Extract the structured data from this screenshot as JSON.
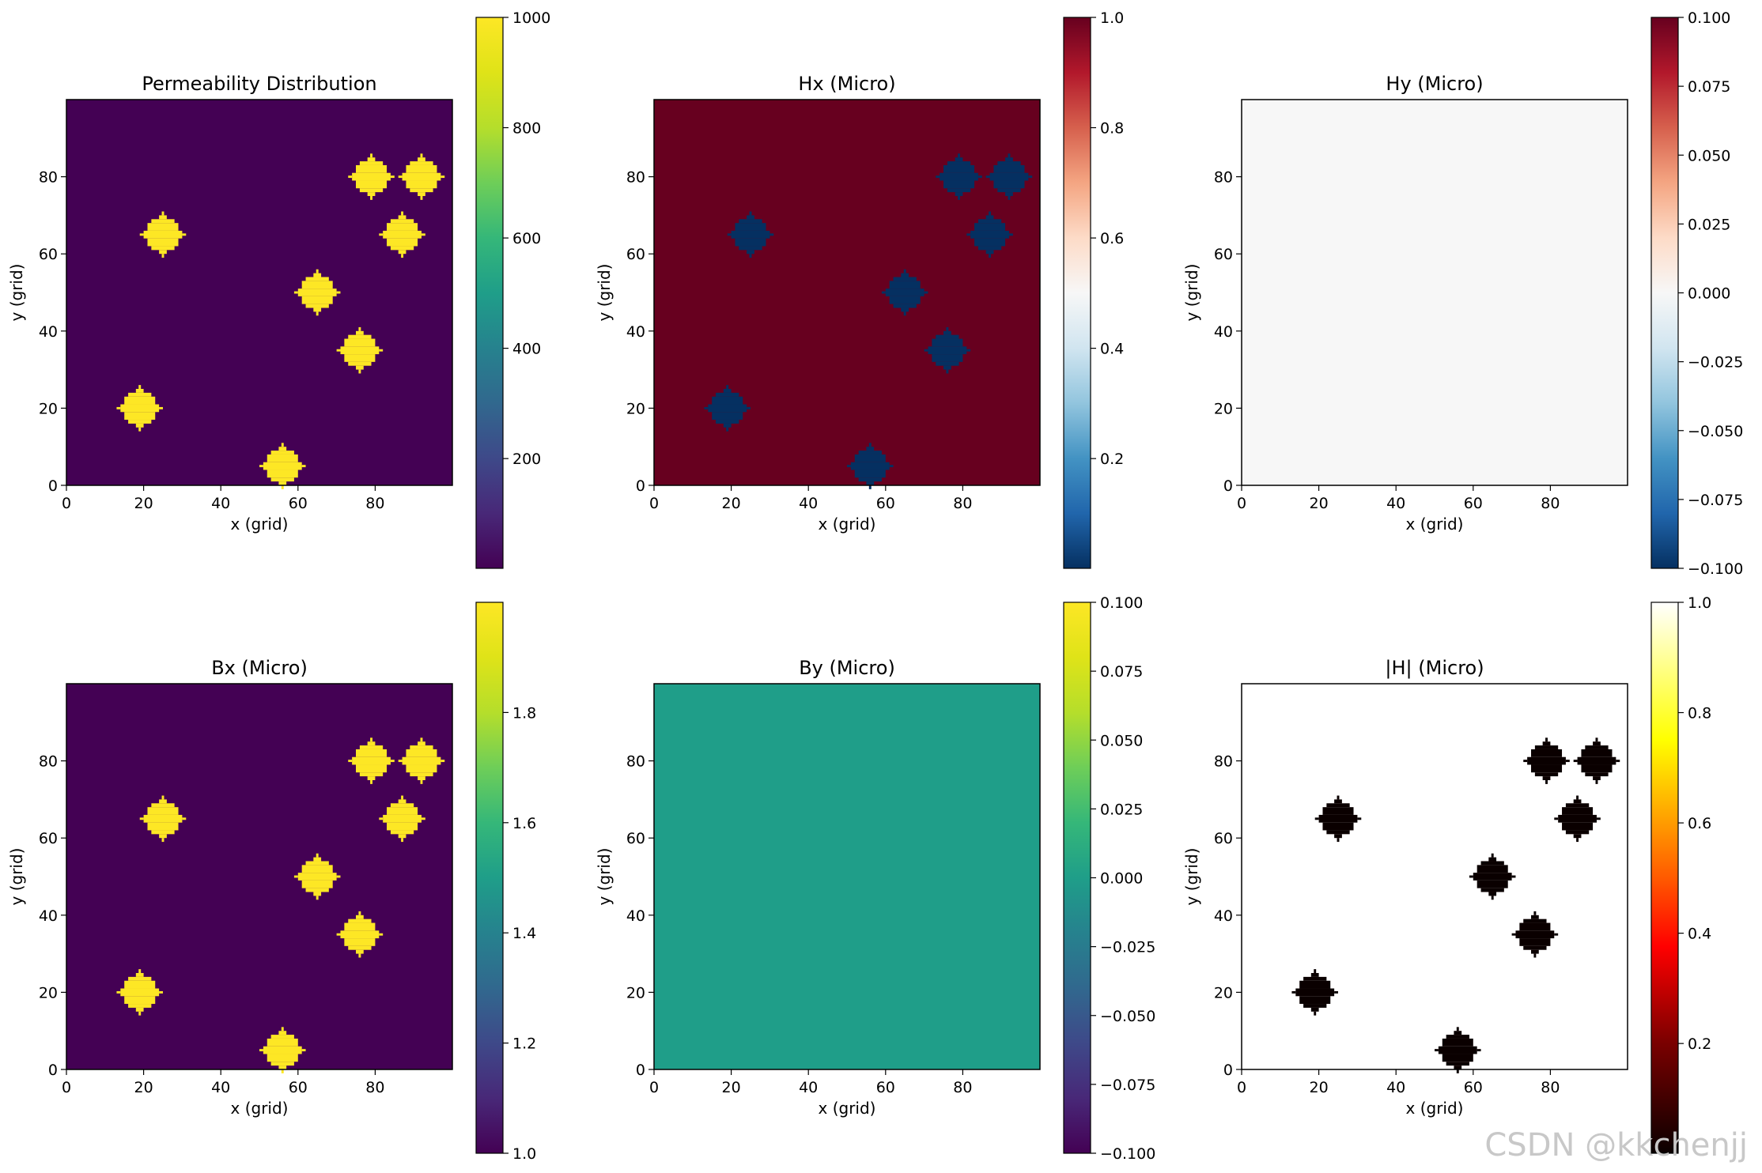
{
  "chart_data": [
    {
      "type": "heatmap",
      "title": "Permeability Distribution",
      "xlabel": "x (grid)",
      "ylabel": "y (grid)",
      "xlim": [
        0,
        100
      ],
      "ylim": [
        0,
        100
      ],
      "xticks": [
        "0",
        "20",
        "40",
        "60",
        "80"
      ],
      "yticks": [
        "0",
        "20",
        "40",
        "60",
        "80"
      ],
      "colormap": "viridis",
      "background_value": 1,
      "inclusion_value": 1000,
      "inclusion_radius": 5,
      "inclusions": [
        {
          "x": 19,
          "y": 20
        },
        {
          "x": 25,
          "y": 65
        },
        {
          "x": 56,
          "y": 5
        },
        {
          "x": 65,
          "y": 50
        },
        {
          "x": 76,
          "y": 35
        },
        {
          "x": 79,
          "y": 80
        },
        {
          "x": 87,
          "y": 65
        },
        {
          "x": 92,
          "y": 80
        }
      ],
      "colorbar": {
        "min": 1,
        "max": 1000,
        "ticks": [
          "200",
          "400",
          "600",
          "800",
          "1000"
        ],
        "tick_values": [
          200,
          400,
          600,
          800,
          1000
        ]
      }
    },
    {
      "type": "heatmap",
      "title": "Hx (Micro)",
      "xlabel": "x (grid)",
      "ylabel": "y (grid)",
      "xlim": [
        0,
        100
      ],
      "ylim": [
        0,
        100
      ],
      "xticks": [
        "0",
        "20",
        "40",
        "60",
        "80"
      ],
      "yticks": [
        "0",
        "20",
        "40",
        "60",
        "80"
      ],
      "colormap": "RdBu_r",
      "background_value": 1.0,
      "inclusion_value": 0.001,
      "inclusion_radius": 5,
      "inclusions": [
        {
          "x": 19,
          "y": 20
        },
        {
          "x": 25,
          "y": 65
        },
        {
          "x": 56,
          "y": 5
        },
        {
          "x": 65,
          "y": 50
        },
        {
          "x": 76,
          "y": 35
        },
        {
          "x": 79,
          "y": 80
        },
        {
          "x": 87,
          "y": 65
        },
        {
          "x": 92,
          "y": 80
        }
      ],
      "colorbar": {
        "min": 0.001,
        "max": 1.0,
        "ticks": [
          "0.2",
          "0.4",
          "0.6",
          "0.8",
          "1.0"
        ],
        "tick_values": [
          0.2,
          0.4,
          0.6,
          0.8,
          1.0
        ]
      }
    },
    {
      "type": "heatmap",
      "title": "Hy (Micro)",
      "xlabel": "x (grid)",
      "ylabel": "y (grid)",
      "xlim": [
        0,
        100
      ],
      "ylim": [
        0,
        100
      ],
      "xticks": [
        "0",
        "20",
        "40",
        "60",
        "80"
      ],
      "yticks": [
        "0",
        "20",
        "40",
        "60",
        "80"
      ],
      "colormap": "RdBu_r",
      "background_value": 0.0,
      "inclusion_value": 0.0,
      "inclusion_radius": 5,
      "inclusions": [],
      "colorbar": {
        "min": -0.1,
        "max": 0.1,
        "ticks": [
          "−0.100",
          "−0.075",
          "−0.050",
          "−0.025",
          "0.000",
          "0.025",
          "0.050",
          "0.075",
          "0.100"
        ],
        "tick_values": [
          -0.1,
          -0.075,
          -0.05,
          -0.025,
          0.0,
          0.025,
          0.05,
          0.075,
          0.1
        ]
      }
    },
    {
      "type": "heatmap",
      "title": "Bx (Micro)",
      "xlabel": "x (grid)",
      "ylabel": "y (grid)",
      "xlim": [
        0,
        100
      ],
      "ylim": [
        0,
        100
      ],
      "xticks": [
        "0",
        "20",
        "40",
        "60",
        "80"
      ],
      "yticks": [
        "0",
        "20",
        "40",
        "60",
        "80"
      ],
      "colormap": "viridis",
      "background_value": 1.0,
      "inclusion_value": 2.0,
      "inclusion_radius": 5,
      "inclusions": [
        {
          "x": 19,
          "y": 20
        },
        {
          "x": 25,
          "y": 65
        },
        {
          "x": 56,
          "y": 5
        },
        {
          "x": 65,
          "y": 50
        },
        {
          "x": 76,
          "y": 35
        },
        {
          "x": 79,
          "y": 80
        },
        {
          "x": 87,
          "y": 65
        },
        {
          "x": 92,
          "y": 80
        }
      ],
      "colorbar": {
        "min": 1.0,
        "max": 2.0,
        "ticks": [
          "1.0",
          "1.2",
          "1.4",
          "1.6",
          "1.8"
        ],
        "tick_values": [
          1.0,
          1.2,
          1.4,
          1.6,
          1.8
        ]
      }
    },
    {
      "type": "heatmap",
      "title": "By (Micro)",
      "xlabel": "x (grid)",
      "ylabel": "y (grid)",
      "xlim": [
        0,
        100
      ],
      "ylim": [
        0,
        100
      ],
      "xticks": [
        "0",
        "20",
        "40",
        "60",
        "80"
      ],
      "yticks": [
        "0",
        "20",
        "40",
        "60",
        "80"
      ],
      "colormap": "viridis",
      "background_value": 0.0,
      "inclusion_value": 0.0,
      "inclusion_radius": 5,
      "inclusions": [],
      "colorbar": {
        "min": -0.1,
        "max": 0.1,
        "ticks": [
          "−0.100",
          "−0.075",
          "−0.050",
          "−0.025",
          "0.000",
          "0.025",
          "0.050",
          "0.075",
          "0.100"
        ],
        "tick_values": [
          -0.1,
          -0.075,
          -0.05,
          -0.025,
          0.0,
          0.025,
          0.05,
          0.075,
          0.1
        ]
      }
    },
    {
      "type": "heatmap",
      "title": "|H| (Micro)",
      "xlabel": "x (grid)",
      "ylabel": "y (grid)",
      "xlim": [
        0,
        100
      ],
      "ylim": [
        0,
        100
      ],
      "xticks": [
        "0",
        "20",
        "40",
        "60",
        "80"
      ],
      "yticks": [
        "0",
        "20",
        "40",
        "60",
        "80"
      ],
      "colormap": "hot",
      "background_value": 1.0,
      "inclusion_value": 0.001,
      "inclusion_radius": 5,
      "inclusions": [
        {
          "x": 19,
          "y": 20
        },
        {
          "x": 25,
          "y": 65
        },
        {
          "x": 56,
          "y": 5
        },
        {
          "x": 65,
          "y": 50
        },
        {
          "x": 76,
          "y": 35
        },
        {
          "x": 79,
          "y": 80
        },
        {
          "x": 87,
          "y": 65
        },
        {
          "x": 92,
          "y": 80
        }
      ],
      "colorbar": {
        "min": 0.001,
        "max": 1.0,
        "ticks": [
          "0.2",
          "0.4",
          "0.6",
          "0.8",
          "1.0"
        ],
        "tick_values": [
          0.2,
          0.4,
          0.6,
          0.8,
          1.0
        ]
      }
    }
  ],
  "watermark": "CSDN @kkchenjj"
}
